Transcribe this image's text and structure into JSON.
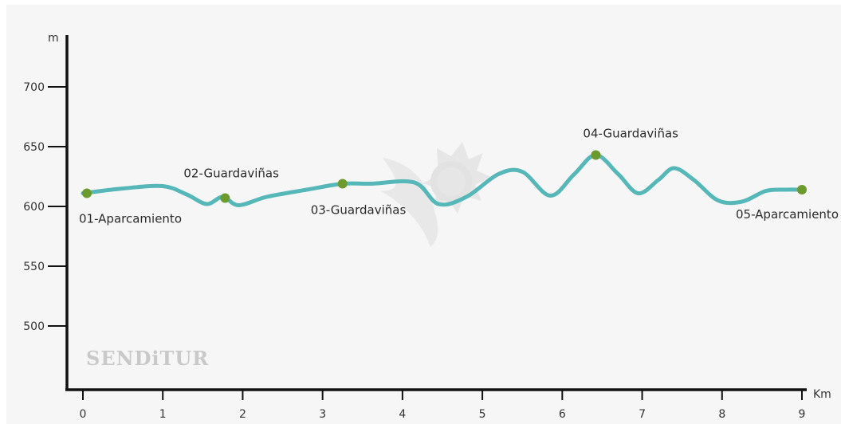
{
  "chart_data": {
    "type": "line",
    "xlabel": "Km",
    "ylabel": "m",
    "xlim": [
      0,
      9
    ],
    "ylim": [
      450,
      750
    ],
    "x_ticks": [
      "0",
      "1",
      "2",
      "3",
      "4",
      "5",
      "6",
      "7",
      "8",
      "9"
    ],
    "y_ticks": [
      "500",
      "550",
      "600",
      "650",
      "700"
    ],
    "grid": false,
    "series": [
      {
        "color": "#56b7b8",
        "x": [
          0,
          0.5,
          1.0,
          1.3,
          1.55,
          1.75,
          1.95,
          2.3,
          2.8,
          3.25,
          3.6,
          4.15,
          4.45,
          4.8,
          5.2,
          5.5,
          5.85,
          6.15,
          6.42,
          6.7,
          6.95,
          7.2,
          7.4,
          7.65,
          7.95,
          8.25,
          8.55,
          8.8,
          9.0
        ],
        "y": [
          611,
          615,
          617,
          610,
          602,
          608,
          601,
          608,
          614,
          619,
          619,
          620,
          602,
          608,
          627,
          629,
          609,
          627,
          643,
          627,
          611,
          622,
          632,
          622,
          605,
          604,
          613,
          614,
          614
        ]
      }
    ],
    "waypoints": [
      {
        "label": "01-Aparcamiento",
        "x": 0.05,
        "y": 611,
        "color": "#6c9a2c"
      },
      {
        "label": "02-Guardaviñas",
        "x": 1.78,
        "y": 607,
        "color": "#6c9a2c"
      },
      {
        "label": "03-Guardaviñas",
        "x": 3.25,
        "y": 619,
        "color": "#6c9a2c"
      },
      {
        "label": "04-Guardaviñas",
        "x": 6.42,
        "y": 643,
        "color": "#6c9a2c"
      },
      {
        "label": "05-Aparcamiento",
        "x": 9.0,
        "y": 614,
        "color": "#6c9a2c"
      }
    ],
    "watermark": "SENDiTUR"
  }
}
